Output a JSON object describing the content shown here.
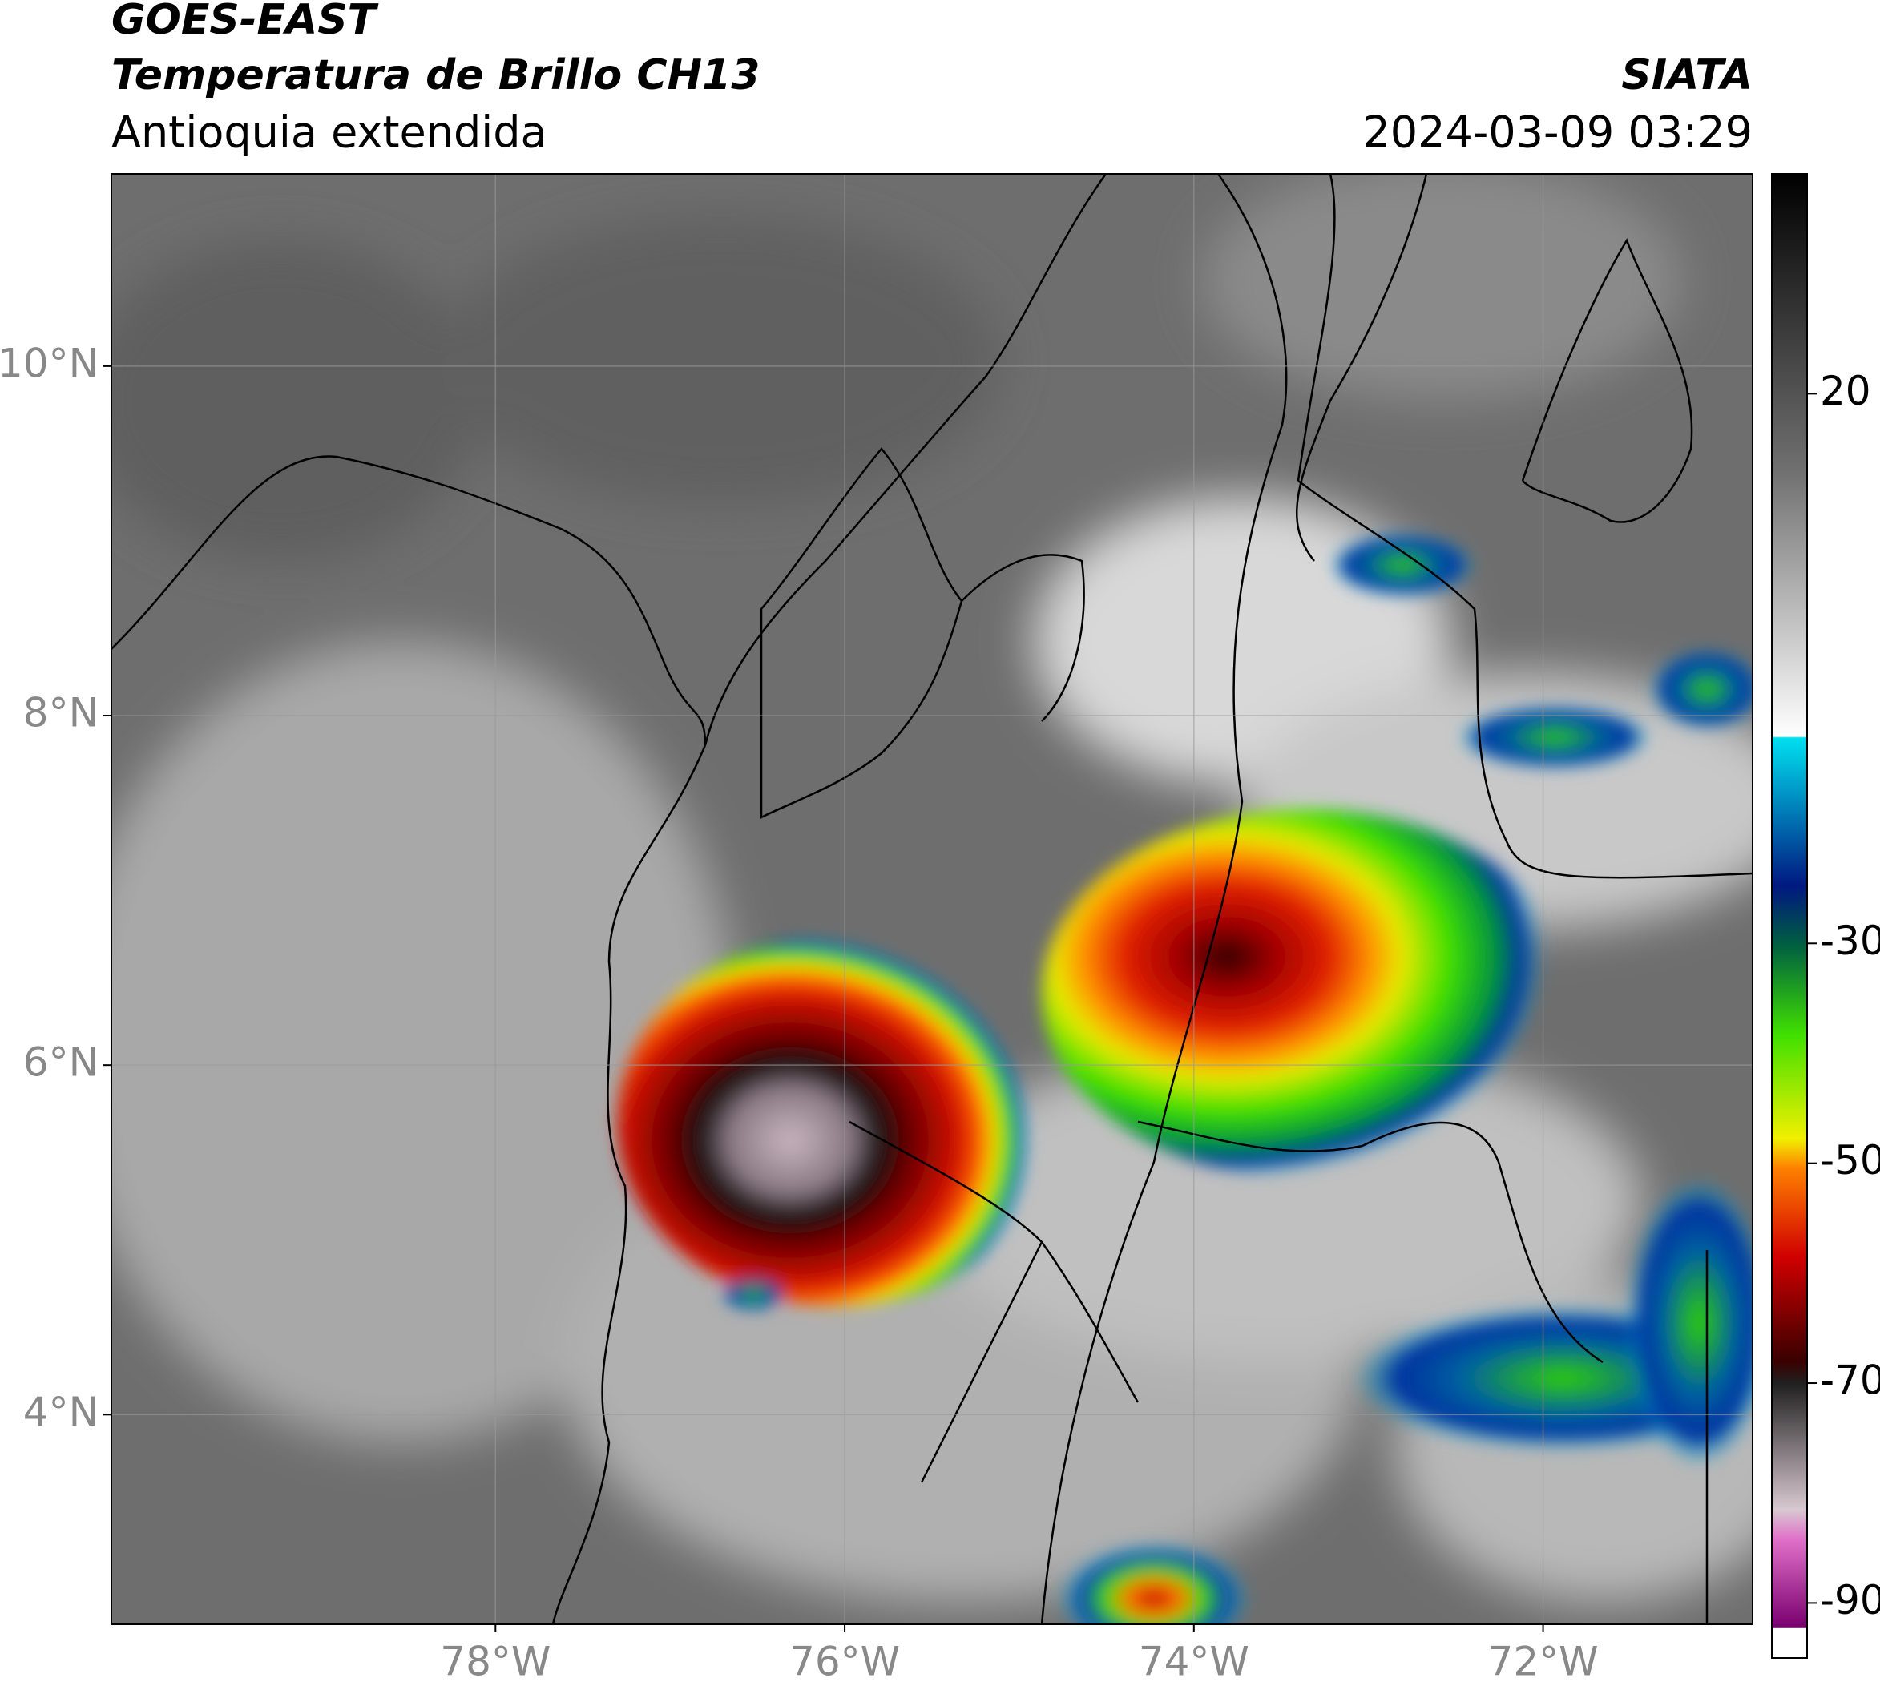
{
  "header": {
    "title": "GOES-EAST",
    "subtitle": "Temperatura de Brillo CH13",
    "region": "Antioquia extendida",
    "source": "SIATA",
    "timestamp": "2024-03-09 03:29"
  },
  "map": {
    "xlim": [
      -80.2,
      -70.8
    ],
    "ylim": [
      2.8,
      11.1
    ],
    "xticks": [
      {
        "value": -78,
        "label": "78°W"
      },
      {
        "value": -76,
        "label": "76°W"
      },
      {
        "value": -74,
        "label": "74°W"
      },
      {
        "value": -72,
        "label": "72°W"
      }
    ],
    "yticks": [
      {
        "value": 4,
        "label": "4°N"
      },
      {
        "value": 6,
        "label": "6°N"
      },
      {
        "value": 8,
        "label": "8°N"
      },
      {
        "value": 10,
        "label": "10°N"
      }
    ],
    "grid": true
  },
  "colorbar": {
    "lim": [
      -95,
      40
    ],
    "ticks": [
      -90,
      -70,
      -50,
      -30,
      20
    ]
  }
}
